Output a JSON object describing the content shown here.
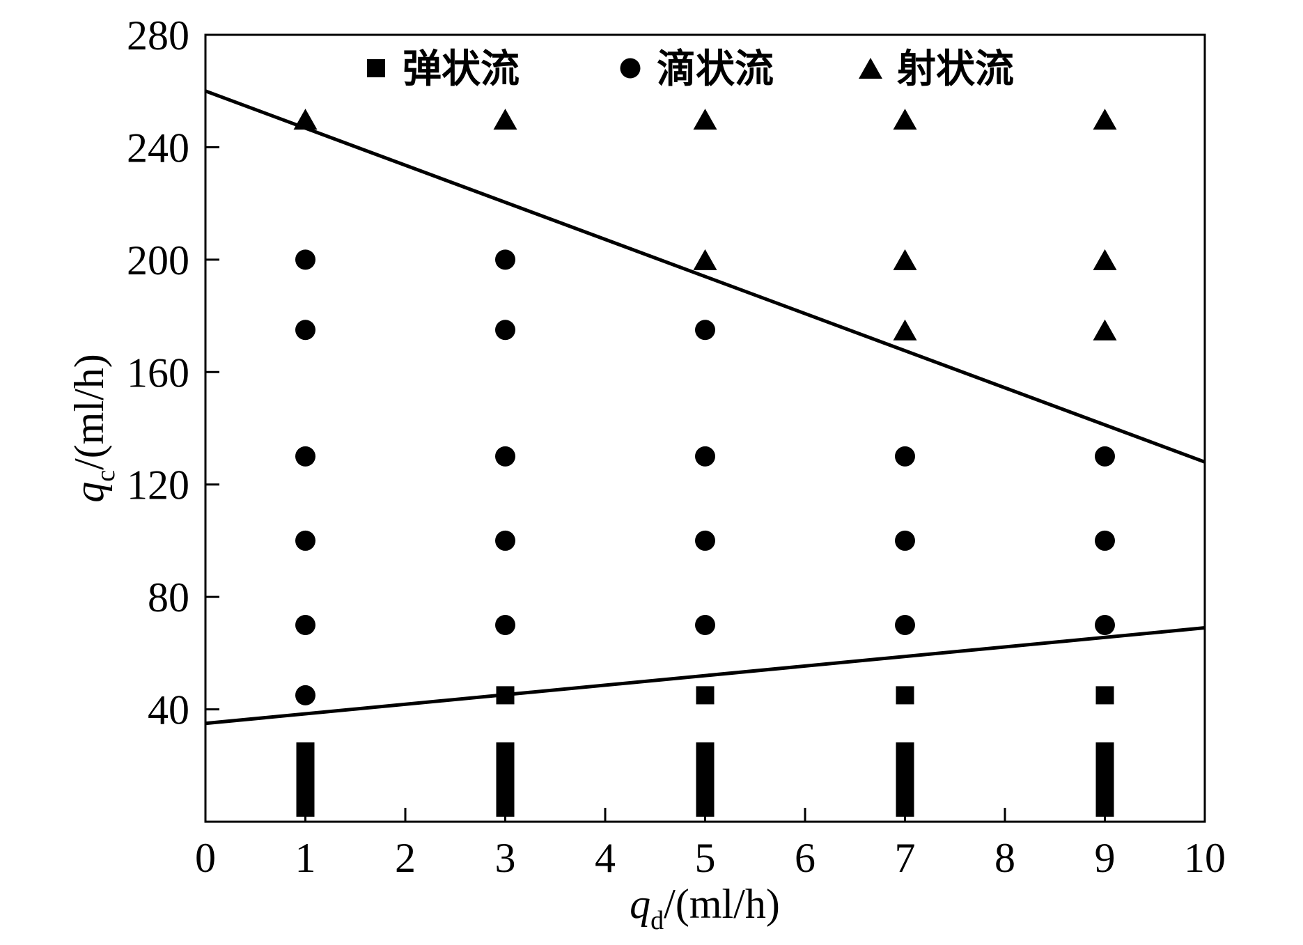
{
  "chart_data": {
    "type": "scatter",
    "xlabel": {
      "var": "q",
      "sub": "d",
      "unit": "/(ml/h)"
    },
    "ylabel": {
      "var": "q",
      "sub": "c",
      "unit": "/(ml/h)"
    },
    "xlim": [
      0,
      10
    ],
    "ylim": [
      0,
      280
    ],
    "x_ticks": [
      0,
      1,
      2,
      3,
      4,
      5,
      6,
      7,
      8,
      9,
      10
    ],
    "y_ticks": [
      40,
      80,
      120,
      160,
      200,
      240,
      280
    ],
    "grid": false,
    "legend_position": "top",
    "series": [
      {
        "name": "弹状流",
        "marker": "square",
        "color": "#000000",
        "points": [
          [
            1,
            5
          ],
          [
            1,
            10
          ],
          [
            1,
            15
          ],
          [
            1,
            20
          ],
          [
            1,
            25
          ],
          [
            3,
            5
          ],
          [
            3,
            10
          ],
          [
            3,
            15
          ],
          [
            3,
            20
          ],
          [
            3,
            25
          ],
          [
            3,
            45
          ],
          [
            5,
            5
          ],
          [
            5,
            10
          ],
          [
            5,
            15
          ],
          [
            5,
            20
          ],
          [
            5,
            25
          ],
          [
            5,
            45
          ],
          [
            7,
            5
          ],
          [
            7,
            10
          ],
          [
            7,
            15
          ],
          [
            7,
            20
          ],
          [
            7,
            25
          ],
          [
            7,
            45
          ],
          [
            9,
            5
          ],
          [
            9,
            10
          ],
          [
            9,
            15
          ],
          [
            9,
            20
          ],
          [
            9,
            25
          ],
          [
            9,
            45
          ]
        ]
      },
      {
        "name": "滴状流",
        "marker": "circle",
        "color": "#000000",
        "points": [
          [
            1,
            45
          ],
          [
            1,
            70
          ],
          [
            1,
            100
          ],
          [
            1,
            130
          ],
          [
            1,
            175
          ],
          [
            1,
            200
          ],
          [
            3,
            70
          ],
          [
            3,
            100
          ],
          [
            3,
            130
          ],
          [
            3,
            175
          ],
          [
            3,
            200
          ],
          [
            5,
            70
          ],
          [
            5,
            100
          ],
          [
            5,
            130
          ],
          [
            5,
            175
          ],
          [
            7,
            70
          ],
          [
            7,
            100
          ],
          [
            7,
            130
          ],
          [
            9,
            70
          ],
          [
            9,
            100
          ],
          [
            9,
            130
          ]
        ]
      },
      {
        "name": "射状流",
        "marker": "triangle",
        "color": "#000000",
        "points": [
          [
            1,
            250
          ],
          [
            3,
            250
          ],
          [
            5,
            250
          ],
          [
            7,
            250
          ],
          [
            9,
            250
          ],
          [
            5,
            200
          ],
          [
            7,
            200
          ],
          [
            9,
            200
          ],
          [
            7,
            175
          ],
          [
            9,
            175
          ]
        ]
      }
    ],
    "boundary_lines": [
      {
        "from": [
          0,
          260
        ],
        "to": [
          10,
          128
        ]
      },
      {
        "from": [
          0,
          35
        ],
        "to": [
          10,
          69
        ]
      }
    ]
  }
}
